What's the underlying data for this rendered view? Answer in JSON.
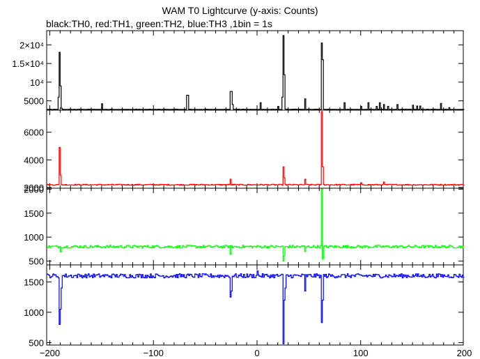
{
  "chart_data": {
    "type": "line",
    "title": "WAM T0 Lightcurve (y-axis: Counts)",
    "subtitle": "black:TH0, red:TH1, green:TH2, blue:TH3 ,1bin = 1s",
    "xlabel": "",
    "xlim": [
      -203,
      199
    ],
    "x_ticks": [
      -200,
      -100,
      0,
      100,
      200
    ],
    "x_tick_labels": [
      "−200",
      "−100",
      "0",
      "100",
      "200"
    ],
    "panels": [
      {
        "name": "TH0",
        "color": "#000000",
        "ylim": [
          2500,
          23800
        ],
        "y_ticks": [
          5000,
          10000,
          15000,
          20000
        ],
        "y_tick_labels": [
          "5000",
          "10⁴",
          "1.5×10⁴",
          "2×10⁴"
        ],
        "baseline": 2650,
        "noise": 120,
        "events": [
          [
            -192,
            6000
          ],
          [
            -191,
            18000
          ],
          [
            -190,
            9000
          ],
          [
            -189,
            3000
          ],
          [
            -150,
            4200
          ],
          [
            -68,
            6500
          ],
          [
            -67,
            6500
          ],
          [
            -26,
            7500
          ],
          [
            -25,
            7500
          ],
          [
            -24,
            4000
          ],
          [
            3,
            4500
          ],
          [
            20,
            3500
          ],
          [
            24,
            6000
          ],
          [
            25,
            22500
          ],
          [
            26,
            12000
          ],
          [
            46,
            5500
          ],
          [
            62,
            20500
          ],
          [
            63,
            16000
          ],
          [
            84,
            4500
          ],
          [
            100,
            3500
          ],
          [
            107,
            4500
          ],
          [
            115,
            3500
          ],
          [
            118,
            4500
          ],
          [
            122,
            4000
          ],
          [
            126,
            3500
          ],
          [
            135,
            4000
          ],
          [
            150,
            3800
          ],
          [
            154,
            3600
          ],
          [
            157,
            3600
          ],
          [
            177,
            4300
          ],
          [
            185,
            3200
          ]
        ]
      },
      {
        "name": "TH1",
        "color": "#ff0000",
        "ylim": [
          1950,
          7600
        ],
        "y_ticks": [
          2000,
          4000,
          6000
        ],
        "y_tick_labels": [
          "2000",
          "4000",
          "6000"
        ],
        "baseline": 2200,
        "noise": 40,
        "events": [
          [
            -191,
            4900
          ],
          [
            -190,
            2900
          ],
          [
            -189,
            2200
          ],
          [
            -26,
            2600
          ],
          [
            25,
            3500
          ],
          [
            26,
            2700
          ],
          [
            46,
            2600
          ],
          [
            62,
            7500
          ],
          [
            63,
            3500
          ],
          [
            100,
            2350
          ],
          [
            122,
            2400
          ]
        ]
      },
      {
        "name": "TH2",
        "color": "#00ff00",
        "ylim": [
          420,
          2020
        ],
        "y_ticks": [
          500,
          1000,
          1500,
          2000
        ],
        "y_tick_labels": [
          "500",
          "1000",
          "1500",
          "2000"
        ],
        "baseline": 800,
        "noise": 30,
        "events": [
          [
            -190,
            690
          ],
          [
            -26,
            640
          ],
          [
            25,
            500
          ],
          [
            26,
            620
          ],
          [
            46,
            700
          ],
          [
            62,
            2000
          ],
          [
            63,
            540
          ]
        ]
      },
      {
        "name": "TH3",
        "color": "#0000ff",
        "ylim": [
          460,
          1780
        ],
        "y_ticks": [
          500,
          1000,
          1500
        ],
        "y_tick_labels": [
          "500",
          "1000",
          "1500"
        ],
        "baseline": 1600,
        "noise": 35,
        "events": [
          [
            -191,
            800
          ],
          [
            -190,
            1050
          ],
          [
            -189,
            1400
          ],
          [
            -26,
            1250
          ],
          [
            -25,
            1350
          ],
          [
            25,
            480
          ],
          [
            26,
            1200
          ],
          [
            27,
            1400
          ],
          [
            46,
            1350
          ],
          [
            62,
            830
          ],
          [
            63,
            1200
          ],
          [
            0,
            1680
          ]
        ]
      }
    ]
  }
}
